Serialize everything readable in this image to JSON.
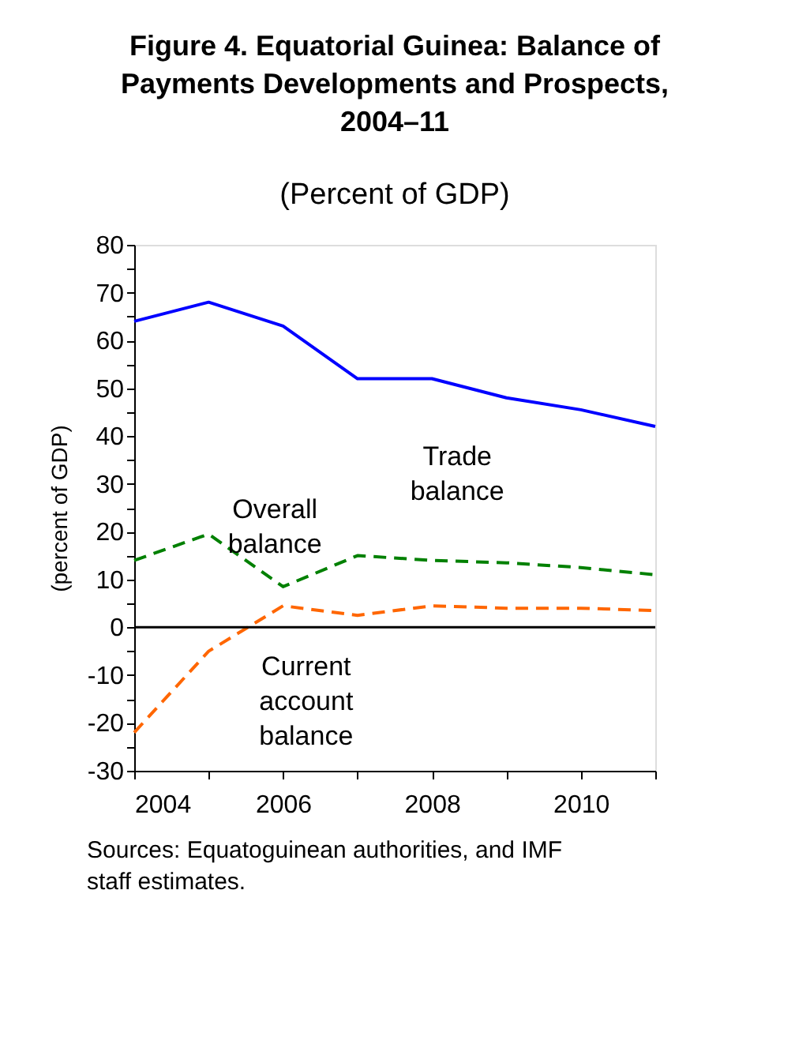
{
  "chart_data": {
    "type": "line",
    "title": "Figure 4. Equatorial Guinea: Balance of Payments Developments and Prospects, 2004–11",
    "subtitle": "(Percent of GDP)",
    "ylabel": "(percent of GDP)",
    "x": [
      2004,
      2005,
      2006,
      2007,
      2008,
      2009,
      2010,
      2011
    ],
    "xlim": [
      2004,
      2011
    ],
    "xticks": [
      2004,
      {
        "value": 2005,
        "label": null
      },
      2006,
      {
        "value": 2007,
        "label": null
      },
      2008,
      {
        "value": 2009,
        "label": null
      },
      2010,
      {
        "value": 2011,
        "label": null
      }
    ],
    "ylim": [
      -30,
      80
    ],
    "yticks": [
      -30,
      {
        "value": -25,
        "label": null
      },
      -20,
      {
        "value": -15,
        "label": null
      },
      -10,
      {
        "value": -5,
        "label": null
      },
      0,
      {
        "value": 5,
        "label": null
      },
      10,
      {
        "value": 15,
        "label": null
      },
      20,
      {
        "value": 25,
        "label": null
      },
      30,
      {
        "value": 35,
        "label": null
      },
      40,
      {
        "value": 45,
        "label": null
      },
      50,
      {
        "value": 55,
        "label": null
      },
      60,
      {
        "value": 65,
        "label": null
      },
      70,
      {
        "value": 75,
        "label": null
      },
      80
    ],
    "series": [
      {
        "name": "Trade balance",
        "color": "#0000ff",
        "line_style": "solid",
        "values": [
          64,
          68,
          63,
          52,
          52,
          48,
          45.5,
          42
        ]
      },
      {
        "name": "Overall balance",
        "color": "#008000",
        "line_style": "dashed",
        "values": [
          14,
          19.5,
          8.5,
          15,
          14,
          13.5,
          12.5,
          11
        ]
      },
      {
        "name": "Current account balance",
        "color": "#ff6600",
        "line_style": "dashed",
        "values": [
          -22,
          -5,
          4.5,
          2.5,
          4.5,
          4,
          4,
          3.5
        ]
      }
    ],
    "ref_lines": [
      {
        "axis": "y",
        "value": 0,
        "color": "#000000"
      }
    ],
    "grid": false,
    "legend": false,
    "marker": "none",
    "annotations": [
      "Sources: Equatoguinean authorities, and IMF staff estimates."
    ]
  }
}
